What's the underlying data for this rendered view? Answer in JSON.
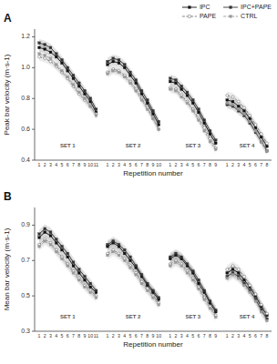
{
  "chart_data": [
    {
      "type": "line",
      "title": "A",
      "ylabel": "Peak bar velocity (m·s-1)",
      "xlabel": "Repetition number",
      "categories": [
        "1",
        "2",
        "3",
        "4",
        "5",
        "6",
        "7",
        "8",
        "9",
        "10",
        "11",
        null,
        "1",
        "2",
        "3",
        "4",
        "5",
        "6",
        "7",
        "8",
        "9",
        "10",
        null,
        "1",
        "2",
        "3",
        "4",
        "5",
        "6",
        "7",
        "8",
        "9",
        null,
        "1",
        "2",
        "3",
        "4",
        "5",
        "6",
        "7",
        "8"
      ],
      "annotations": [
        {
          "text": "SET 1"
        },
        {
          "text": "SET 2"
        },
        {
          "text": "SET 3"
        },
        {
          "text": "SET 4"
        }
      ],
      "ylim": [
        0.4,
        1.25
      ],
      "yticks": [
        0.4,
        0.6,
        0.8,
        {
          "value": 1.0,
          "label": "1.0"
        },
        1.2
      ],
      "grid": false,
      "legend": "top-right",
      "series": [
        {
          "name": "IPC",
          "color": "#111111",
          "marker": "square",
          "line_style": "solid",
          "error": 0.025,
          "values": [
            1.13,
            1.12,
            1.1,
            1.07,
            1.03,
            0.98,
            0.93,
            0.88,
            0.83,
            0.78,
            0.71,
            null,
            1.02,
            1.04,
            1.03,
            1.0,
            0.95,
            0.9,
            0.83,
            0.77,
            0.7,
            0.63,
            null,
            0.91,
            0.9,
            0.86,
            0.82,
            0.77,
            0.71,
            0.64,
            0.57,
            0.51,
            null,
            0.79,
            0.78,
            0.75,
            0.72,
            0.67,
            0.61,
            0.55,
            0.49
          ]
        },
        {
          "name": "PAPE",
          "color": "#777777",
          "marker": "open-circle",
          "line_style": "dashed",
          "error": 0.025,
          "values": [
            1.07,
            1.06,
            1.04,
            1.01,
            0.97,
            0.93,
            0.88,
            0.83,
            0.79,
            0.75,
            0.7,
            null,
            0.97,
            0.99,
            0.98,
            0.95,
            0.91,
            0.86,
            0.8,
            0.74,
            0.67,
            0.6,
            null,
            0.87,
            0.86,
            0.82,
            0.78,
            0.73,
            0.67,
            0.61,
            0.54,
            0.48,
            null,
            0.82,
            0.81,
            0.78,
            0.74,
            0.69,
            0.63,
            0.57,
            0.51
          ]
        },
        {
          "name": "IPC+PAPE",
          "color": "#333333",
          "marker": "square",
          "line_style": "solid",
          "error": 0.025,
          "values": [
            1.16,
            1.15,
            1.13,
            1.09,
            1.05,
            1.0,
            0.95,
            0.9,
            0.85,
            0.8,
            0.73,
            null,
            1.04,
            1.06,
            1.05,
            1.02,
            0.97,
            0.92,
            0.85,
            0.79,
            0.72,
            0.65,
            null,
            0.93,
            0.92,
            0.88,
            0.84,
            0.79,
            0.73,
            0.66,
            0.59,
            0.53,
            null,
            0.76,
            0.75,
            0.72,
            0.69,
            0.64,
            0.58,
            0.52,
            0.46
          ]
        },
        {
          "name": "CTRL",
          "color": "#999999",
          "marker": "square",
          "line_style": "dashed",
          "error": 0.025,
          "values": [
            1.09,
            1.08,
            1.06,
            1.02,
            0.98,
            0.94,
            0.89,
            0.84,
            0.8,
            0.75,
            0.69,
            null,
            0.96,
            0.98,
            0.97,
            0.94,
            0.9,
            0.85,
            0.79,
            0.73,
            0.67,
            0.6,
            null,
            0.86,
            0.85,
            0.81,
            0.77,
            0.72,
            0.66,
            0.59,
            0.52,
            0.47,
            null,
            0.77,
            0.76,
            0.73,
            0.7,
            0.65,
            0.59,
            0.52,
            0.46
          ]
        }
      ]
    },
    {
      "type": "line",
      "title": "B",
      "ylabel": "Mean bar velocity (m·s-1)",
      "xlabel": "Repetition number",
      "categories": [
        "1",
        "2",
        "3",
        "4",
        "5",
        "6",
        "7",
        "8",
        "9",
        "10",
        "11",
        null,
        "1",
        "2",
        "3",
        "4",
        "5",
        "6",
        "7",
        "8",
        "9",
        "10",
        null,
        "1",
        "2",
        "3",
        "4",
        "5",
        "6",
        "7",
        "8",
        "9",
        null,
        "1",
        "2",
        "3",
        "4",
        "5",
        "6",
        "7",
        "8"
      ],
      "annotations": [
        {
          "text": "SET 1"
        },
        {
          "text": "SET 2"
        },
        {
          "text": "SET 3"
        },
        {
          "text": "SET 4"
        }
      ],
      "ylim": [
        0.3,
        1.0
      ],
      "yticks": [
        0.3,
        0.5,
        0.7,
        0.9
      ],
      "grid": false,
      "series": [
        {
          "name": "IPC",
          "color": "#111111",
          "marker": "square",
          "line_style": "solid",
          "error": 0.025,
          "values": [
            0.83,
            0.86,
            0.84,
            0.8,
            0.76,
            0.72,
            0.67,
            0.63,
            0.59,
            0.55,
            0.52,
            null,
            0.78,
            0.8,
            0.78,
            0.74,
            0.7,
            0.66,
            0.61,
            0.56,
            0.52,
            0.48,
            null,
            0.71,
            0.73,
            0.71,
            0.67,
            0.63,
            0.57,
            0.52,
            0.46,
            0.41,
            null,
            0.63,
            0.65,
            0.63,
            0.59,
            0.55,
            0.5,
            0.44,
            0.39
          ]
        },
        {
          "name": "PAPE",
          "color": "#777777",
          "marker": "open-circle",
          "line_style": "dashed",
          "error": 0.025,
          "values": [
            0.79,
            0.82,
            0.8,
            0.76,
            0.72,
            0.68,
            0.64,
            0.6,
            0.56,
            0.53,
            0.5,
            null,
            0.74,
            0.76,
            0.74,
            0.71,
            0.67,
            0.63,
            0.58,
            0.54,
            0.5,
            0.46,
            null,
            0.68,
            0.7,
            0.68,
            0.64,
            0.6,
            0.55,
            0.49,
            0.44,
            0.39,
            null,
            0.65,
            0.67,
            0.65,
            0.61,
            0.56,
            0.51,
            0.45,
            0.4
          ]
        },
        {
          "name": "IPC+PAPE",
          "color": "#333333",
          "marker": "square",
          "line_style": "solid",
          "error": 0.025,
          "values": [
            0.85,
            0.88,
            0.86,
            0.82,
            0.78,
            0.74,
            0.69,
            0.65,
            0.61,
            0.57,
            0.53,
            null,
            0.79,
            0.81,
            0.79,
            0.76,
            0.72,
            0.67,
            0.62,
            0.57,
            0.53,
            0.49,
            null,
            0.72,
            0.74,
            0.72,
            0.68,
            0.64,
            0.59,
            0.53,
            0.47,
            0.42,
            null,
            0.61,
            0.63,
            0.61,
            0.57,
            0.53,
            0.48,
            0.42,
            0.37
          ]
        },
        {
          "name": "CTRL",
          "color": "#999999",
          "marker": "square",
          "line_style": "dashed",
          "error": 0.025,
          "values": [
            0.78,
            0.81,
            0.79,
            0.75,
            0.71,
            0.67,
            0.63,
            0.59,
            0.55,
            0.52,
            0.49,
            null,
            0.73,
            0.75,
            0.73,
            0.7,
            0.66,
            0.62,
            0.57,
            0.53,
            0.49,
            0.45,
            null,
            0.67,
            0.69,
            0.67,
            0.63,
            0.59,
            0.54,
            0.48,
            0.43,
            0.38,
            null,
            0.6,
            0.62,
            0.6,
            0.56,
            0.52,
            0.47,
            0.41,
            0.36
          ]
        }
      ]
    }
  ]
}
